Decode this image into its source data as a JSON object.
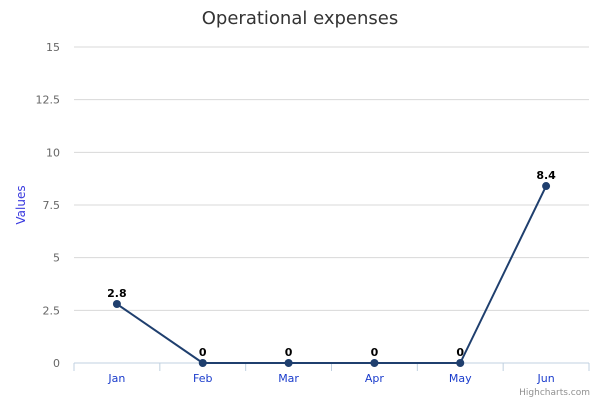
{
  "chart_data": {
    "type": "line",
    "title": "Operational expenses",
    "xlabel": "",
    "ylabel": "Values",
    "categories": [
      "Jan",
      "Feb",
      "Mar",
      "Apr",
      "May",
      "Jun"
    ],
    "series": [
      {
        "values": [
          2.8,
          0,
          0,
          0,
          0,
          8.4
        ]
      }
    ],
    "data_labels": [
      "2.8",
      "0",
      "0",
      "0",
      "0",
      "8.4"
    ],
    "y_ticks": [
      "0",
      "2.5",
      "5",
      "7.5",
      "10",
      "12.5",
      "15"
    ],
    "y_tick_values": [
      0,
      2.5,
      5,
      7.5,
      10,
      12.5,
      15
    ],
    "ylim": [
      0,
      15
    ],
    "grid": true,
    "legend": "none",
    "line_color": "#1f3f6e",
    "credits": "Highcharts.com"
  }
}
